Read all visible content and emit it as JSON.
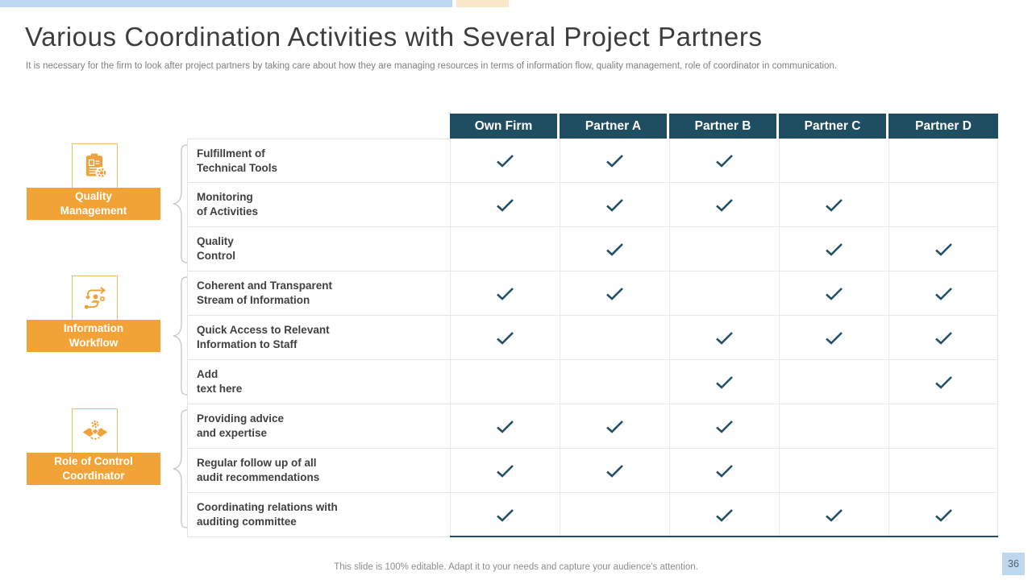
{
  "slide": {
    "title": "Various Coordination Activities with Several Project Partners",
    "subtitle": "It is necessary for the firm to look after project partners by taking care about how they are managing resources in terms of information flow, quality management, role of coordinator in communication.",
    "footer": "This slide is 100% editable. Adapt it to your needs and capture your audience's attention.",
    "page_number": "36"
  },
  "colors": {
    "accent_orange": "#F2A338",
    "icon_border_orange": "#EDBA6C",
    "header_teal": "#1F4E63",
    "check_teal": "#235069",
    "topbar_blue": "#BDD7EE",
    "topbar_orange": "#F9E7C8",
    "page_box_blue": "#BDD7EE"
  },
  "categories": [
    {
      "label": "Quality\nManagement",
      "icon": "clipboard-audit-icon"
    },
    {
      "label": "Information\nWorkflow",
      "icon": "workflow-icon"
    },
    {
      "label": "Role of Control\nCoordinator",
      "icon": "handshake-icon"
    }
  ],
  "table": {
    "columns": [
      "Own Firm",
      "Partner A",
      "Partner B",
      "Partner C",
      "Partner D"
    ],
    "check_icon": "checkmark-icon",
    "rows": [
      {
        "label": "Fulfillment of\nTechnical Tools",
        "checks": [
          true,
          true,
          true,
          false,
          false
        ]
      },
      {
        "label": "Monitoring\nof Activities",
        "checks": [
          true,
          true,
          true,
          true,
          false
        ]
      },
      {
        "label": "Quality\nControl",
        "checks": [
          false,
          true,
          false,
          true,
          true
        ]
      },
      {
        "label": "Coherent and Transparent\nStream of Information",
        "checks": [
          true,
          true,
          false,
          true,
          true
        ]
      },
      {
        "label": "Quick Access to Relevant\nInformation to Staff",
        "checks": [
          true,
          false,
          true,
          true,
          true
        ]
      },
      {
        "label": "Add\ntext here",
        "checks": [
          false,
          false,
          true,
          false,
          true
        ]
      },
      {
        "label": "Providing advice\nand expertise",
        "checks": [
          true,
          true,
          true,
          false,
          false
        ]
      },
      {
        "label": "Regular follow up of all\naudit recommendations",
        "checks": [
          true,
          true,
          true,
          false,
          false
        ]
      },
      {
        "label": "Coordinating relations with\nauditing committee",
        "checks": [
          true,
          false,
          true,
          true,
          true
        ]
      }
    ]
  }
}
